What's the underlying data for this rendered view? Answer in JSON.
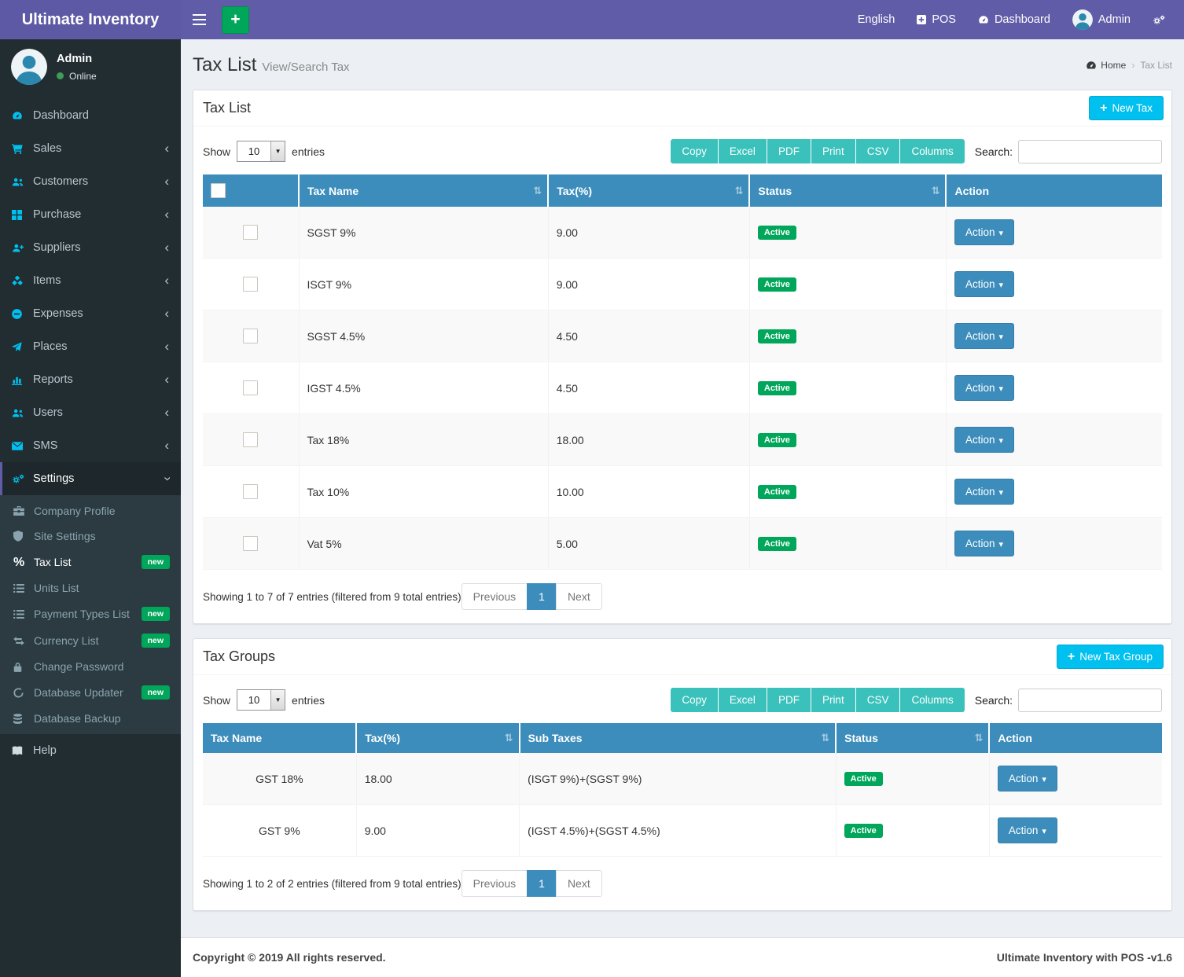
{
  "colors": {
    "navbar_purple": "#605ca8",
    "sidebar_dark": "#222d32",
    "table_header_blue": "#3c8dbc",
    "accent_cyan": "#00c0ef",
    "accent_green": "#00a65a",
    "export_teal": "#3ac1bb"
  },
  "navbar": {
    "brand": "Ultimate Inventory",
    "language": "English",
    "pos": "POS",
    "dashboard": "Dashboard",
    "user": "Admin"
  },
  "sidebar": {
    "user_name": "Admin",
    "user_status": "Online",
    "items": [
      {
        "label": "Dashboard",
        "icon": "gauge",
        "arrow": false
      },
      {
        "label": "Sales",
        "icon": "cart",
        "arrow": true
      },
      {
        "label": "Customers",
        "icon": "users",
        "arrow": true
      },
      {
        "label": "Purchase",
        "icon": "grid",
        "arrow": true
      },
      {
        "label": "Suppliers",
        "icon": "user-plus",
        "arrow": true
      },
      {
        "label": "Items",
        "icon": "cubes",
        "arrow": true
      },
      {
        "label": "Expenses",
        "icon": "minus-circle",
        "arrow": true
      },
      {
        "label": "Places",
        "icon": "paper-plane",
        "arrow": true
      },
      {
        "label": "Reports",
        "icon": "bar-chart",
        "arrow": true
      },
      {
        "label": "Users",
        "icon": "users",
        "arrow": true
      },
      {
        "label": "SMS",
        "icon": "envelope",
        "arrow": true
      },
      {
        "label": "Settings",
        "icon": "gears",
        "arrow": "down",
        "active": true
      }
    ],
    "submenu": [
      {
        "label": "Company Profile",
        "icon": "briefcase"
      },
      {
        "label": "Site Settings",
        "icon": "shield"
      },
      {
        "label": "Tax List",
        "icon": "percent",
        "badge": "new",
        "active": true
      },
      {
        "label": "Units List",
        "icon": "list"
      },
      {
        "label": "Payment Types List",
        "icon": "list",
        "badge": "new"
      },
      {
        "label": "Currency List",
        "icon": "exchange",
        "badge": "new"
      },
      {
        "label": "Change Password",
        "icon": "lock"
      },
      {
        "label": "Database Updater",
        "icon": "refresh",
        "badge": "new"
      },
      {
        "label": "Database Backup",
        "icon": "database"
      }
    ],
    "help": {
      "label": "Help",
      "icon": "book"
    }
  },
  "page": {
    "title": "Tax List",
    "subtitle": "View/Search Tax",
    "breadcrumb_home": "Home",
    "breadcrumb_current": "Tax List"
  },
  "controls": {
    "show_label": "Show",
    "page_size": "10",
    "entries_label": "entries",
    "export_buttons": [
      "Copy",
      "Excel",
      "PDF",
      "Print",
      "CSV",
      "Columns"
    ],
    "search_label": "Search:",
    "previous": "Previous",
    "page": "1",
    "next": "Next"
  },
  "tax_list": {
    "panel_title": "Tax List",
    "new_button": "New Tax",
    "columns": [
      {
        "label": "",
        "type": "checkbox",
        "sort": false
      },
      {
        "label": "Tax Name",
        "sort": true
      },
      {
        "label": "Tax(%)",
        "sort": true
      },
      {
        "label": "Status",
        "sort": true
      },
      {
        "label": "Action",
        "sort": false
      }
    ],
    "rows": [
      {
        "name": "SGST 9%",
        "pct": "9.00",
        "status": "Active",
        "action": "Action"
      },
      {
        "name": "ISGT 9%",
        "pct": "9.00",
        "status": "Active",
        "action": "Action"
      },
      {
        "name": "SGST 4.5%",
        "pct": "4.50",
        "status": "Active",
        "action": "Action"
      },
      {
        "name": "IGST 4.5%",
        "pct": "4.50",
        "status": "Active",
        "action": "Action"
      },
      {
        "name": "Tax 18%",
        "pct": "18.00",
        "status": "Active",
        "action": "Action"
      },
      {
        "name": "Tax 10%",
        "pct": "10.00",
        "status": "Active",
        "action": "Action"
      },
      {
        "name": "Vat 5%",
        "pct": "5.00",
        "status": "Active",
        "action": "Action"
      }
    ],
    "summary": "Showing 1 to 7 of 7 entries (filtered from 9 total entries)"
  },
  "tax_groups": {
    "panel_title": "Tax Groups",
    "new_button": "New Tax Group",
    "columns": [
      {
        "label": "Tax Name",
        "sort": false,
        "align": "center"
      },
      {
        "label": "Tax(%)",
        "sort": true
      },
      {
        "label": "Sub Taxes",
        "sort": true
      },
      {
        "label": "Status",
        "sort": true
      },
      {
        "label": "Action",
        "sort": false
      }
    ],
    "rows": [
      {
        "name": "GST 18%",
        "pct": "18.00",
        "sub": "(ISGT 9%)+(SGST 9%)",
        "status": "Active",
        "action": "Action"
      },
      {
        "name": "GST 9%",
        "pct": "9.00",
        "sub": "(IGST 4.5%)+(SGST 4.5%)",
        "status": "Active",
        "action": "Action"
      }
    ],
    "summary": "Showing 1 to 2 of 2 entries (filtered from 9 total entries)"
  },
  "footer": {
    "left": "Copyright © 2019 All rights reserved.",
    "right": "Ultimate Inventory with POS -v1.6"
  }
}
